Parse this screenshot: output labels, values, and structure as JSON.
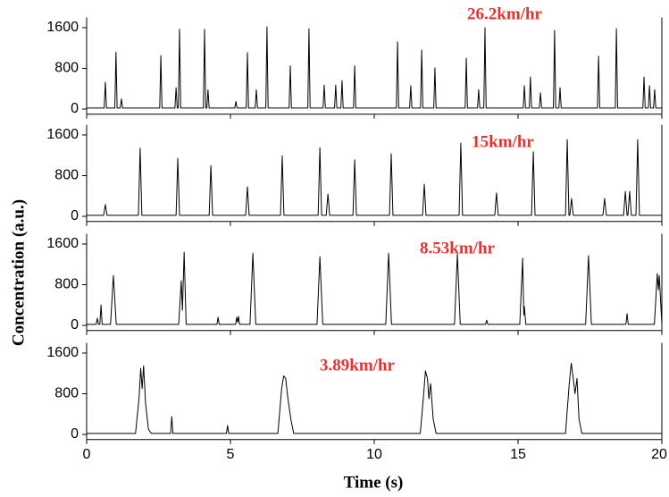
{
  "x_label": "Time (s)",
  "y_label": "Concentration (a.u.)",
  "chart_data": [
    {
      "type": "line",
      "annotation": "26.2km/hr",
      "annotation_color": "#e8312f",
      "color": "#000000",
      "xlim": [
        0,
        20
      ],
      "xticks": [
        0,
        5,
        10,
        15,
        20
      ],
      "show_xtick_labels": false,
      "ylim": [
        -100,
        1800
      ],
      "yticks": [
        0,
        800,
        1600
      ],
      "x": [
        0,
        0.61,
        0.65,
        0.69,
        0.98,
        1.02,
        1.06,
        1.17,
        1.21,
        1.25,
        2.54,
        2.58,
        2.62,
        3.07,
        3.11,
        3.15,
        3.19,
        3.23,
        3.27,
        4.06,
        4.1,
        4.14,
        4.18,
        4.22,
        4.26,
        5.15,
        5.19,
        5.23,
        5.55,
        5.59,
        5.63,
        5.86,
        5.9,
        5.94,
        6.23,
        6.27,
        6.31,
        7.04,
        7.08,
        7.12,
        7.69,
        7.73,
        7.77,
        8.22,
        8.26,
        8.3,
        8.62,
        8.66,
        8.7,
        8.84,
        8.88,
        8.92,
        9.28,
        9.32,
        9.36,
        10.77,
        10.81,
        10.85,
        11.23,
        11.27,
        11.31,
        11.61,
        11.65,
        11.69,
        12.07,
        12.11,
        12.15,
        13.16,
        13.2,
        13.24,
        13.59,
        13.63,
        13.67,
        13.81,
        13.85,
        13.89,
        15.18,
        15.22,
        15.26,
        15.39,
        15.43,
        15.47,
        15.74,
        15.78,
        15.82,
        16.23,
        16.27,
        16.31,
        16.42,
        16.46,
        16.5,
        17.76,
        17.8,
        17.84,
        18.38,
        18.42,
        18.46,
        19.34,
        19.38,
        19.42,
        19.53,
        19.57,
        19.61,
        19.71,
        19.75,
        19.79,
        20
      ],
      "values": [
        20,
        20,
        530,
        20,
        20,
        1120,
        20,
        20,
        200,
        20,
        20,
        1050,
        20,
        20,
        420,
        20,
        20,
        1570,
        20,
        20,
        1570,
        20,
        20,
        380,
        20,
        20,
        150,
        20,
        20,
        1110,
        20,
        20,
        380,
        20,
        20,
        1620,
        20,
        20,
        850,
        20,
        20,
        1580,
        20,
        20,
        470,
        20,
        20,
        470,
        20,
        20,
        560,
        20,
        20,
        850,
        20,
        20,
        1320,
        20,
        20,
        460,
        20,
        20,
        1160,
        20,
        20,
        810,
        20,
        20,
        1000,
        20,
        20,
        380,
        20,
        20,
        1600,
        20,
        20,
        460,
        20,
        20,
        630,
        20,
        20,
        320,
        20,
        20,
        1550,
        20,
        20,
        420,
        20,
        20,
        1040,
        20,
        20,
        1580,
        20,
        20,
        630,
        20,
        20,
        460,
        20,
        20,
        380,
        20,
        20
      ]
    },
    {
      "type": "line",
      "annotation": "15km/hr",
      "annotation_color": "#e8312f",
      "color": "#000000",
      "xlim": [
        0,
        20
      ],
      "xticks": [
        0,
        5,
        10,
        15,
        20
      ],
      "show_xtick_labels": false,
      "ylim": [
        -100,
        1800
      ],
      "yticks": [
        0,
        800,
        1600
      ],
      "x": [
        0,
        0.59,
        0.65,
        0.71,
        1.8,
        1.86,
        1.92,
        3.11,
        3.17,
        3.23,
        4.26,
        4.32,
        4.38,
        5.53,
        5.59,
        5.65,
        6.74,
        6.8,
        6.86,
        8.05,
        8.11,
        8.17,
        8.33,
        8.39,
        8.45,
        9.26,
        9.32,
        9.38,
        10.53,
        10.59,
        10.65,
        11.68,
        11.74,
        11.8,
        12.95,
        13.01,
        13.07,
        14.19,
        14.25,
        14.31,
        15.47,
        15.53,
        15.59,
        16.65,
        16.71,
        16.77,
        16.8,
        16.86,
        16.92,
        17.95,
        18.01,
        18.07,
        18.67,
        18.73,
        18.79,
        18.82,
        18.88,
        18.94,
        19.1,
        19.16,
        19.22,
        20
      ],
      "values": [
        20,
        20,
        230,
        20,
        20,
        1340,
        20,
        20,
        1140,
        20,
        20,
        1000,
        20,
        20,
        580,
        20,
        20,
        1190,
        20,
        20,
        1350,
        20,
        20,
        440,
        20,
        20,
        1110,
        20,
        20,
        1230,
        20,
        20,
        630,
        20,
        20,
        1440,
        20,
        20,
        460,
        20,
        20,
        1270,
        20,
        20,
        1510,
        20,
        20,
        350,
        20,
        20,
        350,
        20,
        20,
        490,
        20,
        20,
        490,
        20,
        20,
        1510,
        20,
        20
      ]
    },
    {
      "type": "line",
      "annotation": "8.53km/hr",
      "annotation_color": "#e8312f",
      "color": "#000000",
      "xlim": [
        0,
        20
      ],
      "xticks": [
        0,
        5,
        10,
        15,
        20
      ],
      "show_xtick_labels": false,
      "ylim": [
        -100,
        1800
      ],
      "yticks": [
        0,
        800,
        1600
      ],
      "x": [
        0,
        0.33,
        0.37,
        0.41,
        0.46,
        0.5,
        0.54,
        0.83,
        0.93,
        1.03,
        3.2,
        3.29,
        3.33,
        3.39,
        3.46,
        4.53,
        4.57,
        4.61,
        5.18,
        5.22,
        5.25,
        5.28,
        5.32,
        5.68,
        5.78,
        5.88,
        8.01,
        8.11,
        8.21,
        10.4,
        10.5,
        10.6,
        12.79,
        12.89,
        12.99,
        13.87,
        13.91,
        13.95,
        15.06,
        15.16,
        15.2,
        15.22,
        15.27,
        17.35,
        17.45,
        17.55,
        18.75,
        18.79,
        18.83,
        19.74,
        19.84,
        19.88,
        19.91,
        20
      ],
      "values": [
        20,
        20,
        140,
        20,
        20,
        400,
        20,
        20,
        980,
        20,
        20,
        880,
        300,
        1440,
        20,
        20,
        160,
        20,
        20,
        160,
        60,
        175,
        20,
        20,
        1420,
        20,
        20,
        1350,
        20,
        20,
        1420,
        20,
        20,
        1400,
        20,
        20,
        100,
        20,
        20,
        1320,
        200,
        370,
        20,
        20,
        1370,
        20,
        20,
        230,
        20,
        20,
        1020,
        700,
        980,
        20
      ]
    },
    {
      "type": "line",
      "annotation": "3.89km/hr",
      "annotation_color": "#e8312f",
      "color": "#000000",
      "xlim": [
        0,
        20
      ],
      "xticks": [
        0,
        5,
        10,
        15,
        20
      ],
      "show_xtick_labels": true,
      "ylim": [
        -100,
        1800
      ],
      "yticks": [
        0,
        800,
        1600
      ],
      "x": [
        0,
        1.7,
        1.82,
        1.88,
        1.93,
        1.98,
        2.05,
        2.15,
        2.25,
        2.92,
        2.96,
        3.0,
        4.86,
        4.9,
        4.94,
        6.65,
        6.78,
        6.85,
        6.92,
        7.0,
        7.1,
        7.2,
        11.6,
        11.72,
        11.78,
        11.85,
        11.9,
        11.96,
        12.05,
        12.15,
        16.65,
        16.78,
        16.85,
        16.92,
        16.98,
        17.05,
        17.12,
        17.22,
        20
      ],
      "values": [
        20,
        20,
        700,
        1300,
        900,
        1350,
        600,
        100,
        20,
        20,
        350,
        20,
        20,
        175,
        20,
        20,
        900,
        1150,
        1100,
        700,
        300,
        20,
        20,
        800,
        1250,
        1100,
        700,
        1000,
        300,
        20,
        20,
        1000,
        1400,
        1100,
        800,
        1100,
        300,
        20,
        20
      ]
    }
  ]
}
